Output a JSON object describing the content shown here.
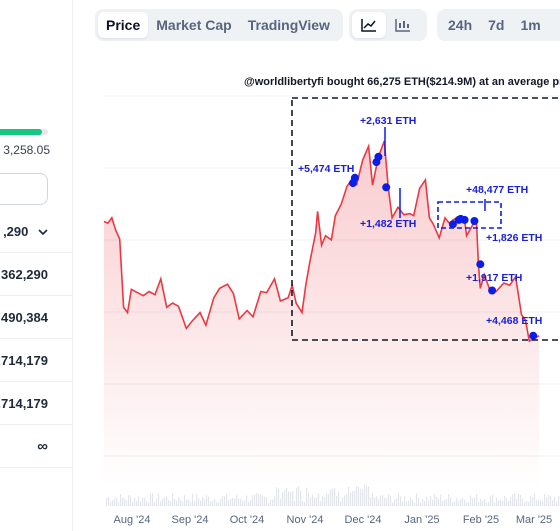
{
  "left_panel": {
    "supply_progress_fraction": 0.9,
    "supply_value": "3,258.05",
    "rows": [
      {
        "value": ",290",
        "has_dropdown": true
      },
      {
        "value": "362,290"
      },
      {
        "value": "490,384"
      },
      {
        "value": ",714,179"
      },
      {
        "value": ",714,179"
      },
      {
        "value": "∞"
      }
    ]
  },
  "toolbar": {
    "tabs": [
      {
        "label": "Price",
        "active": true
      },
      {
        "label": "Market Cap",
        "active": false
      },
      {
        "label": "TradingView",
        "active": false
      }
    ],
    "chart_types": [
      {
        "icon": "line-chart-icon",
        "active": true
      },
      {
        "icon": "candlestick-chart-icon",
        "active": false
      }
    ],
    "ranges": [
      "24h",
      "7d",
      "1m"
    ]
  },
  "annotation": {
    "title": "@worldlibertyfi bought 66,275 ETH($214.9M) at an average pric",
    "labels": [
      "+2,631 ETH",
      "+5,474 ETH",
      "+1,482 ETH",
      "+48,477 ETH",
      "+1,826 ETH",
      "+1,917 ETH",
      "+4,468 ETH"
    ]
  },
  "colors": {
    "line": "#ea3943",
    "marker": "#0b1ee8",
    "annotation_text": "#1a1fd6",
    "progress": "#16c784"
  },
  "chart_data": {
    "type": "area",
    "x_ticks": [
      "Aug '24",
      "Sep '24",
      "Oct '24",
      "Nov '24",
      "Dec '24",
      "Jan '25",
      "Feb '25",
      "Mar '25"
    ],
    "price_series": [
      [
        "2024-07-26",
        3285
      ],
      [
        "2024-07-28",
        3270
      ],
      [
        "2024-07-30",
        3320
      ],
      [
        "2024-08-01",
        3200
      ],
      [
        "2024-08-03",
        3120
      ],
      [
        "2024-08-05",
        2470
      ],
      [
        "2024-08-07",
        2420
      ],
      [
        "2024-08-09",
        2640
      ],
      [
        "2024-08-12",
        2610
      ],
      [
        "2024-08-15",
        2580
      ],
      [
        "2024-08-18",
        2620
      ],
      [
        "2024-08-21",
        2590
      ],
      [
        "2024-08-24",
        2740
      ],
      [
        "2024-08-27",
        2470
      ],
      [
        "2024-08-30",
        2510
      ],
      [
        "2024-09-02",
        2480
      ],
      [
        "2024-09-06",
        2270
      ],
      [
        "2024-09-09",
        2340
      ],
      [
        "2024-09-13",
        2420
      ],
      [
        "2024-09-16",
        2300
      ],
      [
        "2024-09-20",
        2560
      ],
      [
        "2024-09-23",
        2650
      ],
      [
        "2024-09-27",
        2690
      ],
      [
        "2024-09-30",
        2600
      ],
      [
        "2024-10-03",
        2360
      ],
      [
        "2024-10-07",
        2440
      ],
      [
        "2024-10-10",
        2380
      ],
      [
        "2024-10-14",
        2620
      ],
      [
        "2024-10-17",
        2610
      ],
      [
        "2024-10-21",
        2740
      ],
      [
        "2024-10-24",
        2530
      ],
      [
        "2024-10-28",
        2560
      ],
      [
        "2024-10-30",
        2680
      ],
      [
        "2024-11-01",
        2510
      ],
      [
        "2024-11-04",
        2420
      ],
      [
        "2024-11-06",
        2690
      ],
      [
        "2024-11-08",
        2900
      ],
      [
        "2024-11-11",
        3180
      ],
      [
        "2024-11-12",
        3380
      ],
      [
        "2024-11-14",
        3060
      ],
      [
        "2024-11-16",
        3150
      ],
      [
        "2024-11-19",
        3110
      ],
      [
        "2024-11-21",
        3340
      ],
      [
        "2024-11-24",
        3450
      ],
      [
        "2024-11-27",
        3620
      ],
      [
        "2024-11-30",
        3700
      ],
      [
        "2024-12-02",
        3640
      ],
      [
        "2024-12-05",
        3870
      ],
      [
        "2024-12-08",
        4000
      ],
      [
        "2024-12-10",
        3630
      ],
      [
        "2024-12-13",
        3900
      ],
      [
        "2024-12-16",
        4050
      ],
      [
        "2024-12-18",
        3610
      ],
      [
        "2024-12-20",
        3320
      ],
      [
        "2024-12-23",
        3420
      ],
      [
        "2024-12-26",
        3350
      ],
      [
        "2024-12-29",
        3360
      ],
      [
        "2024-12-31",
        3340
      ],
      [
        "2025-01-03",
        3600
      ],
      [
        "2025-01-06",
        3680
      ],
      [
        "2025-01-08",
        3320
      ],
      [
        "2025-01-10",
        3260
      ],
      [
        "2025-01-13",
        3130
      ],
      [
        "2025-01-16",
        3320
      ],
      [
        "2025-01-19",
        3250
      ],
      [
        "2025-01-20",
        3300
      ],
      [
        "2025-01-23",
        3330
      ],
      [
        "2025-01-26",
        3300
      ],
      [
        "2025-01-27",
        3150
      ],
      [
        "2025-01-30",
        3250
      ],
      [
        "2025-02-01",
        3300
      ],
      [
        "2025-02-02",
        2880
      ],
      [
        "2025-02-03",
        2650
      ],
      [
        "2025-02-05",
        2780
      ],
      [
        "2025-02-08",
        2630
      ],
      [
        "2025-02-11",
        2620
      ],
      [
        "2025-02-15",
        2700
      ],
      [
        "2025-02-18",
        2680
      ],
      [
        "2025-02-21",
        2760
      ],
      [
        "2025-02-24",
        2400
      ],
      [
        "2025-02-26",
        2350
      ],
      [
        "2025-02-28",
        2150
      ],
      [
        "2025-03-03",
        2180
      ],
      [
        "2025-03-05",
        2200
      ]
    ],
    "buy_markers": [
      {
        "date": "2024-11-30",
        "price": 3650
      },
      {
        "date": "2024-12-01",
        "price": 3700
      },
      {
        "date": "2024-12-12",
        "price": 3850
      },
      {
        "date": "2024-12-13",
        "price": 3900
      },
      {
        "date": "2024-12-17",
        "price": 3610
      },
      {
        "date": "2025-01-20",
        "price": 3260
      },
      {
        "date": "2025-01-23",
        "price": 3300
      },
      {
        "date": "2025-01-24",
        "price": 3310
      },
      {
        "date": "2025-01-26",
        "price": 3300
      },
      {
        "date": "2025-01-31",
        "price": 3290
      },
      {
        "date": "2025-02-03",
        "price": 2880
      },
      {
        "date": "2025-02-09",
        "price": 2630
      },
      {
        "date": "2025-03-02",
        "price": 2200
      }
    ]
  }
}
